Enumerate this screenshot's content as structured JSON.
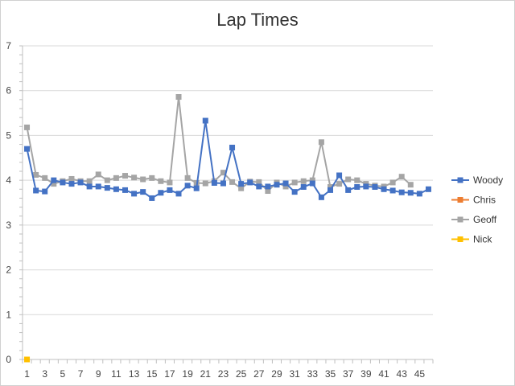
{
  "chart_data": {
    "type": "line",
    "title": "Lap Times",
    "xlabel": "",
    "ylabel": "",
    "ylim": [
      0,
      7
    ],
    "y_ticks": [
      0,
      1,
      2,
      3,
      4,
      5,
      6,
      7
    ],
    "x_range": [
      1,
      46
    ],
    "x_tick_labels": [
      1,
      3,
      5,
      7,
      9,
      11,
      13,
      15,
      17,
      19,
      21,
      23,
      25,
      27,
      29,
      31,
      33,
      35,
      37,
      39,
      41,
      43,
      45
    ],
    "grid": "horizontal",
    "legend_position": "right",
    "series": [
      {
        "name": "Woody",
        "color": "#4472C4",
        "x": [
          1,
          2,
          3,
          4,
          5,
          6,
          7,
          8,
          9,
          10,
          11,
          12,
          13,
          14,
          15,
          16,
          17,
          18,
          19,
          20,
          21,
          22,
          23,
          24,
          25,
          26,
          27,
          28,
          29,
          30,
          31,
          32,
          33,
          34,
          35,
          36,
          37,
          38,
          39,
          40,
          41,
          42,
          43,
          44,
          45,
          46
        ],
        "values": [
          4.7,
          3.77,
          3.75,
          4.0,
          3.95,
          3.92,
          3.95,
          3.86,
          3.86,
          3.83,
          3.8,
          3.78,
          3.7,
          3.74,
          3.6,
          3.72,
          3.78,
          3.7,
          3.88,
          3.82,
          5.33,
          3.94,
          3.93,
          4.73,
          3.92,
          3.95,
          3.86,
          3.86,
          3.9,
          3.93,
          3.74,
          3.85,
          3.93,
          3.62,
          3.78,
          4.11,
          3.78,
          3.85,
          3.86,
          3.85,
          3.8,
          3.77,
          3.73,
          3.72,
          3.7,
          3.8
        ]
      },
      {
        "name": "Chris",
        "color": "#ED7D31",
        "x": [],
        "values": []
      },
      {
        "name": "Geoff",
        "color": "#A5A5A5",
        "x": [
          1,
          2,
          3,
          4,
          5,
          6,
          7,
          8,
          9,
          10,
          11,
          12,
          13,
          14,
          15,
          16,
          17,
          18,
          19,
          20,
          21,
          22,
          23,
          24,
          25,
          26,
          27,
          28,
          29,
          30,
          31,
          32,
          33,
          34,
          35,
          36,
          37,
          38,
          39,
          40,
          41,
          42,
          43,
          44
        ],
        "values": [
          5.18,
          4.12,
          4.05,
          3.92,
          3.98,
          4.03,
          3.98,
          3.98,
          4.13,
          4.0,
          4.05,
          4.1,
          4.06,
          4.02,
          4.05,
          3.98,
          3.95,
          5.86,
          4.05,
          3.94,
          3.93,
          3.98,
          4.17,
          3.96,
          3.82,
          3.97,
          3.96,
          3.76,
          3.95,
          3.86,
          3.95,
          3.98,
          4.0,
          4.85,
          3.85,
          3.92,
          4.02,
          4.0,
          3.92,
          3.88,
          3.86,
          3.95,
          4.08,
          3.9
        ]
      },
      {
        "name": "Nick",
        "color": "#FFC000",
        "x": [
          1
        ],
        "values": [
          0
        ]
      }
    ]
  }
}
